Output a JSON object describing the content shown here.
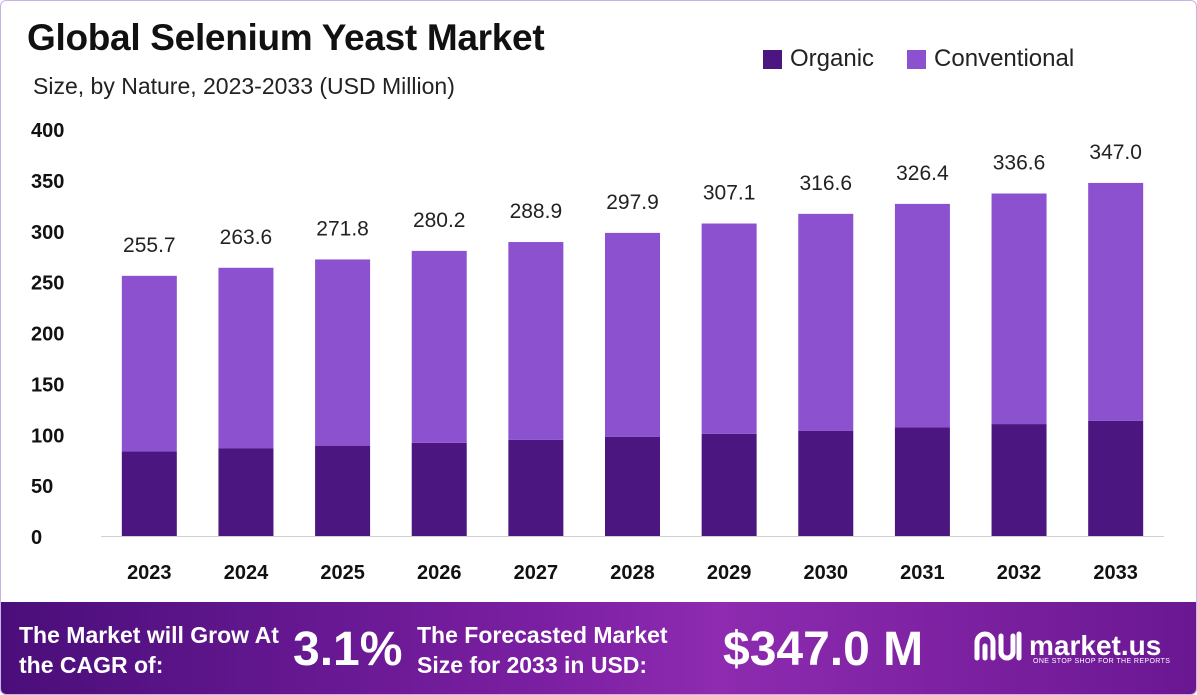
{
  "header": {
    "title": "Global Selenium Yeast Market",
    "subtitle": "Size, by Nature, 2023-2033 (USD Million)"
  },
  "legend": [
    {
      "label": "Organic",
      "color": "#4b167f"
    },
    {
      "label": "Conventional",
      "color": "#8c51cf"
    }
  ],
  "chart_data": {
    "type": "bar",
    "stacked": true,
    "categories": [
      "2023",
      "2024",
      "2025",
      "2026",
      "2027",
      "2028",
      "2029",
      "2030",
      "2031",
      "2032",
      "2033"
    ],
    "series": [
      {
        "name": "Organic",
        "color": "#4b167f",
        "values": [
          83.0,
          86.0,
          88.8,
          91.6,
          94.6,
          97.6,
          100.4,
          103.5,
          106.7,
          110.0,
          113.3
        ]
      },
      {
        "name": "Conventional",
        "color": "#8c51cf",
        "values": [
          172.7,
          177.6,
          183.0,
          188.6,
          194.3,
          200.3,
          206.7,
          213.1,
          219.7,
          226.6,
          233.7
        ]
      }
    ],
    "totals": [
      "255.7",
      "263.6",
      "271.8",
      "280.2",
      "288.9",
      "297.9",
      "307.1",
      "316.6",
      "326.4",
      "336.6",
      "347.0"
    ],
    "total_values": [
      255.7,
      263.6,
      271.8,
      280.2,
      288.9,
      297.9,
      307.1,
      316.6,
      326.4,
      336.6,
      347.0
    ],
    "yticks": [
      "0",
      "50",
      "100",
      "150",
      "200",
      "250",
      "300",
      "350",
      "400"
    ],
    "ylim": [
      0,
      400
    ],
    "grid": false,
    "legend_position": "top-right"
  },
  "footer": {
    "cagr_text": "The Market will Grow At the CAGR of:",
    "cagr_value": "3.1%",
    "forecast_text": "The Forecasted Market Size for 2033 in USD:",
    "forecast_value": "$347.0 M",
    "brand_name": "market.us",
    "brand_tagline": "ONE STOP SHOP FOR THE REPORTS"
  }
}
